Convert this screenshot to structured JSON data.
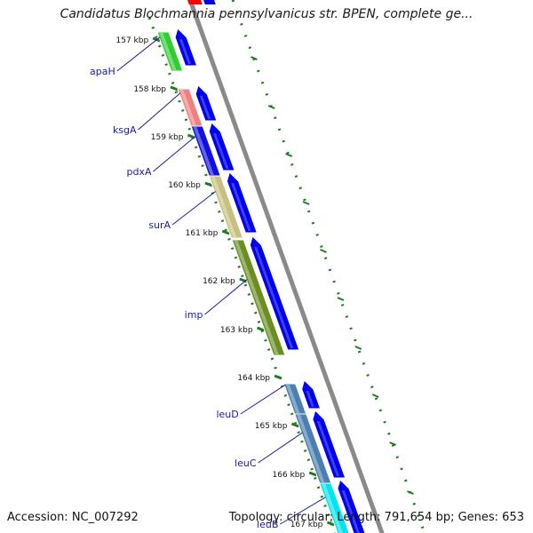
{
  "title": "Candidatus Blochmannia pennsylvanicus str. BPEN, complete ge...",
  "footer": {
    "accession": "Accession: NC_007292",
    "topology": "Topology: circular; Length: 791,654 bp; Genes: 653"
  },
  "colors": {
    "backbone": "#8a8a8a",
    "tick": "#1f7a1f",
    "label": "#1a1aa0",
    "cds": "#0000ee",
    "red_top": "#ff0000"
  },
  "kbp_labels": [
    "157 kbp",
    "158 kbp",
    "159 kbp",
    "160 kbp",
    "161 kbp",
    "162 kbp",
    "163 kbp",
    "164 kbp",
    "165 kbp",
    "166 kbp",
    "167 kbp"
  ],
  "genes": [
    {
      "name": "apaH",
      "color": "#33cc33"
    },
    {
      "name": "ksgA",
      "color": "#f08080"
    },
    {
      "name": "pdxA",
      "color": "#1010e0"
    },
    {
      "name": "surA",
      "color": "#c8c080"
    },
    {
      "name": "imp",
      "color": "#6b8e23"
    },
    {
      "name": "leuD",
      "color": "#4a7fb0"
    },
    {
      "name": "leuC",
      "color": "#4a7fb0"
    },
    {
      "name": "leuB",
      "color": "#00e5ee"
    }
  ]
}
